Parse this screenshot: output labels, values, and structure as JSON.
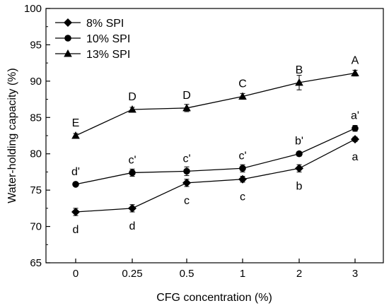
{
  "chart_data": {
    "type": "line",
    "xlabel": "CFG concentration (%)",
    "ylabel": "Water-holding capacity (%)",
    "categories": [
      "0",
      "0.25",
      "0.5",
      "1",
      "2",
      "3"
    ],
    "ylim": [
      65,
      100
    ],
    "yticks": [
      65,
      70,
      75,
      80,
      85,
      90,
      95,
      100
    ],
    "grid": false,
    "legend_position": "top-left",
    "series": [
      {
        "name": "8% SPI",
        "marker": "diamond",
        "values": [
          72.0,
          72.5,
          76.0,
          76.5,
          78.0,
          82.0
        ],
        "errors": [
          0.5,
          0.5,
          0.5,
          0.4,
          0.5,
          0.3
        ],
        "labels": [
          "d",
          "d",
          "c",
          "c",
          "b",
          "a"
        ],
        "label_side": "below"
      },
      {
        "name": "10% SPI",
        "marker": "circle",
        "values": [
          75.8,
          77.4,
          77.6,
          78.0,
          80.0,
          83.5
        ],
        "errors": [
          0.2,
          0.5,
          0.6,
          0.5,
          0.3,
          0.4
        ],
        "labels": [
          "d'",
          "c'",
          "c'",
          "c'",
          "b'",
          "a'"
        ],
        "label_side": "above"
      },
      {
        "name": "13% SPI",
        "marker": "triangle",
        "values": [
          82.5,
          86.1,
          86.3,
          87.9,
          89.8,
          91.1
        ],
        "errors": [
          0.3,
          0.3,
          0.5,
          0.4,
          1.0,
          0.4
        ],
        "labels": [
          "E",
          "D",
          "D",
          "C",
          "B",
          "A"
        ],
        "label_side": "above"
      }
    ]
  }
}
